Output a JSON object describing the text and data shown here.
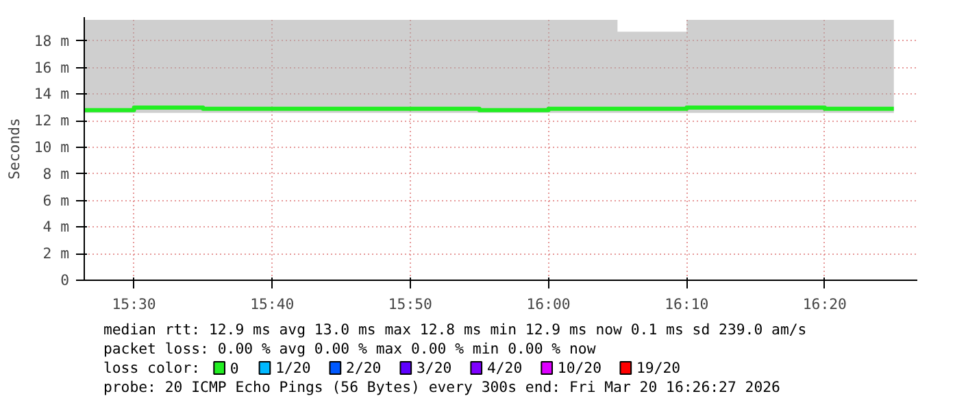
{
  "chart_data": {
    "type": "step",
    "ylabel": "Seconds",
    "legend_title": "loss color:",
    "legend": "bottom",
    "grid": true,
    "line_style": "solid",
    "marker": "none",
    "x": [
      15.44,
      15.5,
      15.5833,
      15.6667,
      15.75,
      15.8333,
      15.9167,
      16.0,
      16.0833,
      16.1667,
      16.25,
      16.3333,
      16.4167
    ],
    "xlim": [
      15.44,
      16.445
    ],
    "xticks": [
      {
        "value": 15.5,
        "label": "15:30"
      },
      {
        "value": 15.6667,
        "label": "15:40"
      },
      {
        "value": 15.8333,
        "label": "15:50"
      },
      {
        "value": 16.0,
        "label": "16:00"
      },
      {
        "value": 16.1667,
        "label": "16:10"
      },
      {
        "value": 16.3333,
        "label": "16:20"
      }
    ],
    "ylim": [
      0,
      19.8
    ],
    "yticks": [
      0,
      {
        "value": 2,
        "label": "2 m"
      },
      {
        "value": 4,
        "label": "4 m"
      },
      {
        "value": 6,
        "label": "6 m"
      },
      {
        "value": 8,
        "label": "8 m"
      },
      {
        "value": 10,
        "label": "10 m"
      },
      {
        "value": 12,
        "label": "12 m"
      },
      {
        "value": 14,
        "label": "14 m"
      },
      {
        "value": 16,
        "label": "16 m"
      },
      {
        "value": 18,
        "label": "18 m"
      }
    ],
    "series": [
      {
        "name": "0",
        "color": "#22ee22",
        "values": [
          12.8,
          13.0,
          12.9,
          12.9,
          12.9,
          12.9,
          12.8,
          12.9,
          12.9,
          13.0,
          13.0,
          12.9,
          12.9
        ],
        "lower": [
          12.6,
          12.6,
          12.6,
          12.6,
          12.6,
          12.6,
          12.6,
          12.6,
          12.6,
          12.6,
          12.6,
          12.6,
          12.6
        ],
        "upper": [
          19.6,
          19.6,
          19.6,
          19.6,
          19.6,
          19.6,
          19.6,
          19.6,
          18.7,
          19.6,
          19.6,
          19.6,
          19.6
        ]
      },
      {
        "name": "1/20",
        "color": "#00b8ff",
        "values": [
          null,
          null,
          null,
          null,
          null,
          null,
          null,
          null,
          null,
          null,
          null,
          null,
          null
        ]
      },
      {
        "name": "2/20",
        "color": "#0059ff",
        "values": [
          null,
          null,
          null,
          null,
          null,
          null,
          null,
          null,
          null,
          null,
          null,
          null,
          null
        ]
      },
      {
        "name": "3/20",
        "color": "#5e00ff",
        "values": [
          null,
          null,
          null,
          null,
          null,
          null,
          null,
          null,
          null,
          null,
          null,
          null,
          null
        ]
      },
      {
        "name": "4/20",
        "color": "#7e00ff",
        "values": [
          null,
          null,
          null,
          null,
          null,
          null,
          null,
          null,
          null,
          null,
          null,
          null,
          null
        ]
      },
      {
        "name": "10/20",
        "color": "#dd00ff",
        "values": [
          null,
          null,
          null,
          null,
          null,
          null,
          null,
          null,
          null,
          null,
          null,
          null,
          null
        ]
      },
      {
        "name": "19/20",
        "color": "#ff0000",
        "values": [
          null,
          null,
          null,
          null,
          null,
          null,
          null,
          null,
          null,
          null,
          null,
          null,
          null
        ]
      }
    ],
    "annotations": [
      "median rtt:  12.9 ms avg  13.0 ms max  12.8 ms min  12.9 ms now  0.1 ms sd  239.0   am/s",
      "packet loss: 0.00 % avg  0.00 % max  0.00 % min  0.00 % now",
      "probe:       20 ICMP Echo Pings (56 Bytes) every 300s          end: Fri Mar 20 16:26:27 2026"
    ]
  }
}
